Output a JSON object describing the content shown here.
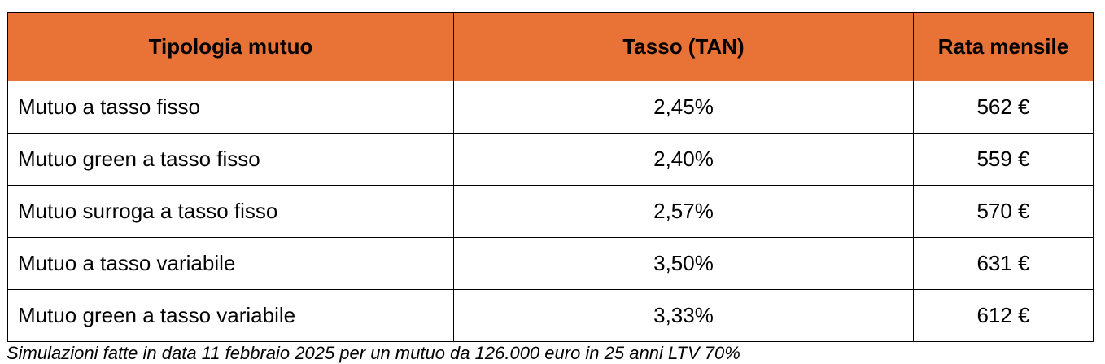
{
  "table": {
    "headers": [
      "Tipologia mutuo",
      "Tasso (TAN)",
      "Rata mensile"
    ],
    "header_color": "#e97336",
    "rows": [
      {
        "type": "Mutuo a tasso fisso",
        "rate": "2,45%",
        "payment": "562 €"
      },
      {
        "type": "Mutuo green a tasso fisso",
        "rate": "2,40%",
        "payment": "559 €"
      },
      {
        "type": "Mutuo surroga a tasso fisso",
        "rate": "2,57%",
        "payment": "570 €"
      },
      {
        "type": "Mutuo a tasso variabile",
        "rate": "3,50%",
        "payment": "631 €"
      },
      {
        "type": "Mutuo green a tasso variabile",
        "rate": "3,33%",
        "payment": "612 €"
      }
    ]
  },
  "footnote": "Simulazioni fatte in data 11 febbraio 2025 per un mutuo da 126.000 euro in 25 anni LTV 70%"
}
